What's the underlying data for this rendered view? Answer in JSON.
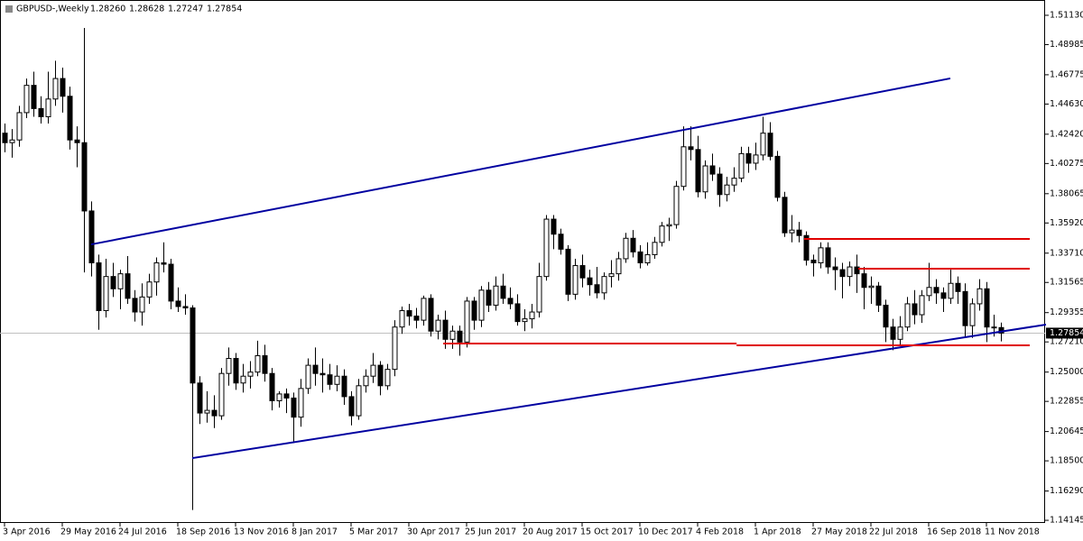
{
  "chart_data": {
    "type": "candlestick",
    "symbol": "GBPUSD-,Weekly",
    "ohlc_labels": [
      "1.28260",
      "1.28628",
      "1.27247",
      "1.27854"
    ],
    "last_price": 1.27854,
    "bull_color": "#ffffff",
    "bear_color": "#000000",
    "categories": [
      "3 Apr 2016",
      null,
      null,
      null,
      null,
      null,
      null,
      null,
      "29 May 2016",
      null,
      null,
      null,
      null,
      null,
      null,
      null,
      "24 Jul 2016",
      null,
      null,
      null,
      null,
      null,
      null,
      null,
      "18 Sep 2016",
      null,
      null,
      null,
      null,
      null,
      null,
      null,
      "13 Nov 2016",
      null,
      null,
      null,
      null,
      null,
      null,
      null,
      "8 Jan 2017",
      null,
      null,
      null,
      null,
      null,
      null,
      null,
      "5 Mar 2017",
      null,
      null,
      null,
      null,
      null,
      null,
      null,
      "30 Apr 2017",
      null,
      null,
      null,
      null,
      null,
      null,
      null,
      "25 Jun 2017",
      null,
      null,
      null,
      null,
      null,
      null,
      null,
      "20 Aug 2017",
      null,
      null,
      null,
      null,
      null,
      null,
      null,
      "15 Oct 2017",
      null,
      null,
      null,
      null,
      null,
      null,
      null,
      "10 Dec 2017",
      null,
      null,
      null,
      null,
      null,
      null,
      null,
      "4 Feb 2018",
      null,
      null,
      null,
      null,
      null,
      null,
      null,
      "1 Apr 2018",
      null,
      null,
      null,
      null,
      null,
      null,
      null,
      "27 May 2018",
      null,
      null,
      null,
      null,
      null,
      null,
      null,
      "22 Jul 2018",
      null,
      null,
      null,
      null,
      null,
      null,
      null,
      "16 Sep 2018",
      null,
      null,
      null,
      null,
      null,
      null,
      null,
      "11 Nov 2018",
      null,
      null
    ],
    "open": [
      1.425,
      1.418,
      1.42,
      1.44,
      1.46,
      1.443,
      1.437,
      1.45,
      1.465,
      1.452,
      1.42,
      1.418,
      1.368,
      1.33,
      1.295,
      1.32,
      1.311,
      1.322,
      1.304,
      1.294,
      1.305,
      1.316,
      1.33,
      1.329,
      1.302,
      1.298,
      1.297,
      1.242,
      1.22,
      1.222,
      1.218,
      1.249,
      1.26,
      1.242,
      1.247,
      1.25,
      1.262,
      1.249,
      1.229,
      1.234,
      1.231,
      1.217,
      1.238,
      1.255,
      1.249,
      1.248,
      1.241,
      1.247,
      1.232,
      1.218,
      1.24,
      1.247,
      1.255,
      1.24,
      1.252,
      1.283,
      1.295,
      1.291,
      1.288,
      1.304,
      1.28,
      1.288,
      1.274,
      1.28,
      1.272,
      1.302,
      1.288,
      1.31,
      1.299,
      1.313,
      1.304,
      1.3,
      1.287,
      1.289,
      1.294,
      1.32,
      1.362,
      1.351,
      1.34,
      1.307,
      1.328,
      1.319,
      1.314,
      1.308,
      1.32,
      1.322,
      1.333,
      1.348,
      1.338,
      1.33,
      1.336,
      1.345,
      1.357,
      1.358,
      1.386,
      1.415,
      1.413,
      1.382,
      1.401,
      1.395,
      1.38,
      1.387,
      1.392,
      1.41,
      1.403,
      1.409,
      1.425,
      1.408,
      1.378,
      1.352,
      1.354,
      1.35,
      1.332,
      1.33,
      1.341,
      1.327,
      1.325,
      1.32,
      1.327,
      1.322,
      1.312,
      1.313,
      1.299,
      1.283,
      1.274,
      1.283,
      1.3,
      1.292,
      1.306,
      1.312,
      1.308,
      1.304,
      1.315,
      1.309,
      1.284,
      1.3,
      1.311,
      1.283,
      1.2826
    ],
    "high": [
      1.432,
      1.428,
      1.445,
      1.465,
      1.47,
      1.452,
      1.47,
      1.478,
      1.473,
      1.459,
      1.43,
      1.502,
      1.375,
      1.336,
      1.333,
      1.33,
      1.325,
      1.335,
      1.31,
      1.315,
      1.322,
      1.334,
      1.345,
      1.333,
      1.312,
      1.307,
      1.299,
      1.247,
      1.236,
      1.233,
      1.253,
      1.268,
      1.264,
      1.256,
      1.258,
      1.273,
      1.27,
      1.253,
      1.236,
      1.238,
      1.235,
      1.245,
      1.26,
      1.268,
      1.26,
      1.256,
      1.255,
      1.252,
      1.236,
      1.245,
      1.252,
      1.264,
      1.258,
      1.256,
      1.288,
      1.298,
      1.3,
      1.297,
      1.306,
      1.307,
      1.292,
      1.295,
      1.284,
      1.284,
      1.305,
      1.305,
      1.313,
      1.316,
      1.32,
      1.322,
      1.312,
      1.307,
      1.296,
      1.3,
      1.33,
      1.365,
      1.365,
      1.355,
      1.343,
      1.333,
      1.336,
      1.325,
      1.327,
      1.323,
      1.332,
      1.338,
      1.352,
      1.354,
      1.343,
      1.345,
      1.349,
      1.36,
      1.363,
      1.39,
      1.43,
      1.43,
      1.423,
      1.405,
      1.41,
      1.4,
      1.393,
      1.4,
      1.415,
      1.415,
      1.418,
      1.437,
      1.433,
      1.412,
      1.382,
      1.365,
      1.36,
      1.353,
      1.336,
      1.345,
      1.345,
      1.334,
      1.33,
      1.331,
      1.336,
      1.327,
      1.32,
      1.316,
      1.303,
      1.289,
      1.291,
      1.305,
      1.31,
      1.31,
      1.33,
      1.318,
      1.312,
      1.325,
      1.32,
      1.315,
      1.304,
      1.318,
      1.316,
      1.292,
      1.28628
    ],
    "low": [
      1.411,
      1.407,
      1.415,
      1.436,
      1.437,
      1.432,
      1.432,
      1.445,
      1.44,
      1.413,
      1.4,
      1.323,
      1.32,
      1.281,
      1.29,
      1.305,
      1.296,
      1.3,
      1.287,
      1.284,
      1.3,
      1.306,
      1.323,
      1.296,
      1.294,
      1.292,
      1.149,
      1.212,
      1.213,
      1.209,
      1.215,
      1.24,
      1.237,
      1.235,
      1.238,
      1.247,
      1.243,
      1.222,
      1.224,
      1.22,
      1.198,
      1.21,
      1.234,
      1.24,
      1.235,
      1.237,
      1.236,
      1.226,
      1.211,
      1.215,
      1.235,
      1.242,
      1.233,
      1.237,
      1.247,
      1.278,
      1.284,
      1.282,
      1.284,
      1.276,
      1.274,
      1.267,
      1.267,
      1.262,
      1.268,
      1.281,
      1.283,
      1.294,
      1.295,
      1.3,
      1.296,
      1.284,
      1.28,
      1.282,
      1.29,
      1.317,
      1.34,
      1.336,
      1.302,
      1.303,
      1.312,
      1.306,
      1.304,
      1.303,
      1.312,
      1.317,
      1.33,
      1.334,
      1.326,
      1.328,
      1.333,
      1.342,
      1.346,
      1.355,
      1.383,
      1.405,
      1.378,
      1.377,
      1.39,
      1.371,
      1.375,
      1.382,
      1.389,
      1.396,
      1.398,
      1.405,
      1.405,
      1.375,
      1.349,
      1.345,
      1.345,
      1.328,
      1.32,
      1.326,
      1.322,
      1.31,
      1.304,
      1.313,
      1.308,
      1.296,
      1.3,
      1.294,
      1.272,
      1.266,
      1.27,
      1.28,
      1.285,
      1.286,
      1.302,
      1.3,
      1.294,
      1.3,
      1.3,
      1.276,
      1.275,
      1.295,
      1.272,
      1.276,
      1.27247
    ],
    "close": [
      1.418,
      1.42,
      1.44,
      1.46,
      1.443,
      1.437,
      1.45,
      1.465,
      1.452,
      1.42,
      1.418,
      1.368,
      1.33,
      1.295,
      1.32,
      1.311,
      1.322,
      1.304,
      1.294,
      1.305,
      1.316,
      1.33,
      1.329,
      1.302,
      1.298,
      1.297,
      1.242,
      1.22,
      1.222,
      1.218,
      1.249,
      1.26,
      1.242,
      1.247,
      1.25,
      1.262,
      1.249,
      1.229,
      1.234,
      1.231,
      1.217,
      1.238,
      1.255,
      1.249,
      1.248,
      1.241,
      1.247,
      1.232,
      1.218,
      1.24,
      1.247,
      1.255,
      1.24,
      1.252,
      1.283,
      1.295,
      1.291,
      1.288,
      1.304,
      1.28,
      1.288,
      1.274,
      1.28,
      1.272,
      1.302,
      1.288,
      1.31,
      1.299,
      1.313,
      1.304,
      1.3,
      1.287,
      1.289,
      1.294,
      1.32,
      1.362,
      1.351,
      1.34,
      1.307,
      1.328,
      1.319,
      1.314,
      1.308,
      1.32,
      1.322,
      1.333,
      1.348,
      1.338,
      1.33,
      1.336,
      1.345,
      1.357,
      1.358,
      1.386,
      1.415,
      1.413,
      1.382,
      1.401,
      1.395,
      1.38,
      1.387,
      1.392,
      1.41,
      1.403,
      1.409,
      1.425,
      1.408,
      1.378,
      1.352,
      1.354,
      1.35,
      1.332,
      1.33,
      1.341,
      1.327,
      1.325,
      1.32,
      1.327,
      1.322,
      1.312,
      1.313,
      1.299,
      1.283,
      1.274,
      1.283,
      1.3,
      1.292,
      1.306,
      1.312,
      1.308,
      1.304,
      1.315,
      1.309,
      1.284,
      1.3,
      1.311,
      1.283,
      1.2826,
      1.27854
    ],
    "ylim": [
      1.1395,
      1.5225
    ],
    "yticks": [
      {
        "value": 1.5113,
        "label": "1.51130"
      },
      {
        "value": 1.48985,
        "label": "1.48985"
      },
      {
        "value": 1.46775,
        "label": "1.46775"
      },
      {
        "value": 1.4463,
        "label": "1.44630"
      },
      {
        "value": 1.4242,
        "label": "1.42420"
      },
      {
        "value": 1.40275,
        "label": "1.40275"
      },
      {
        "value": 1.38065,
        "label": "1.38065"
      },
      {
        "value": 1.3592,
        "label": "1.35920"
      },
      {
        "value": 1.3371,
        "label": "1.33710"
      },
      {
        "value": 1.31565,
        "label": "1.31565"
      },
      {
        "value": 1.29355,
        "label": "1.29355"
      },
      {
        "value": 1.2721,
        "label": "1.27210"
      },
      {
        "value": 1.25,
        "label": "1.25000"
      },
      {
        "value": 1.22855,
        "label": "1.22855"
      },
      {
        "value": 1.20645,
        "label": "1.20645"
      },
      {
        "value": 1.185,
        "label": "1.18500"
      },
      {
        "value": 1.1629,
        "label": "1.16290"
      },
      {
        "value": 1.14145,
        "label": "1.14145"
      }
    ],
    "lines": [
      {
        "color": "#0000a0",
        "x": [
          12,
          131
        ],
        "y": [
          1.3435,
          1.4651
        ]
      },
      {
        "color": "#0000a0",
        "x": [
          26,
          144.25
        ],
        "y": [
          1.187,
          1.2848
        ]
      },
      {
        "color": "#e00000",
        "x": [
          60.75,
          101.4
        ],
        "y": [
          1.2709,
          1.2709
        ]
      },
      {
        "color": "#e00000",
        "x": [
          101.4,
          142
        ],
        "y": [
          1.2696,
          1.2696
        ]
      },
      {
        "color": "#e00000",
        "x": [
          110.75,
          142
        ],
        "y": [
          1.3475,
          1.3475
        ]
      },
      {
        "color": "#e00000",
        "x": [
          118.25,
          142
        ],
        "y": [
          1.3257,
          1.3257
        ]
      }
    ]
  }
}
